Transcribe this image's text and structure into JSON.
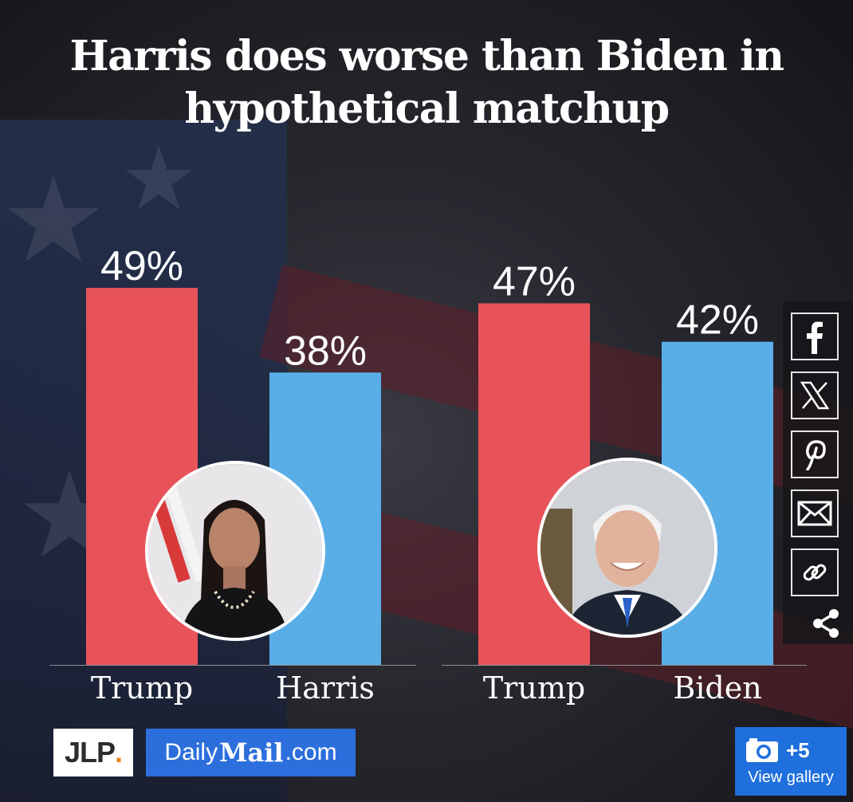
{
  "title_line1": "Harris does worse than Biden in",
  "title_line2": "hypothetical matchup",
  "chart_data": {
    "type": "bar",
    "title": "Harris does worse than Biden in hypothetical matchup",
    "unit": "%",
    "ylim": [
      0,
      55
    ],
    "grid": false,
    "groups": [
      {
        "categories": [
          "Trump",
          "Harris"
        ],
        "values": [
          49,
          38
        ],
        "colors": [
          "#e8535a",
          "#5aaee8"
        ],
        "labels": [
          "49%",
          "38%"
        ]
      },
      {
        "categories": [
          "Trump",
          "Biden"
        ],
        "values": [
          47,
          42
        ],
        "colors": [
          "#e8535a",
          "#5aaee8"
        ],
        "labels": [
          "47%",
          "42%"
        ]
      }
    ]
  },
  "share": {
    "icons": [
      "facebook-icon",
      "x-icon",
      "pinterest-icon",
      "email-icon",
      "link-icon",
      "share-icon"
    ]
  },
  "logos": {
    "jlp": "JLP",
    "jlp_dot": ".",
    "dm_left": "Daily",
    "dm_mid": "Mail",
    "dm_right": ".com"
  },
  "gallery": {
    "count": "+5",
    "label": "View gallery"
  },
  "colors": {
    "trump": "#e8535a",
    "challenger": "#5aaee8",
    "accent": "#1f6fdc"
  }
}
